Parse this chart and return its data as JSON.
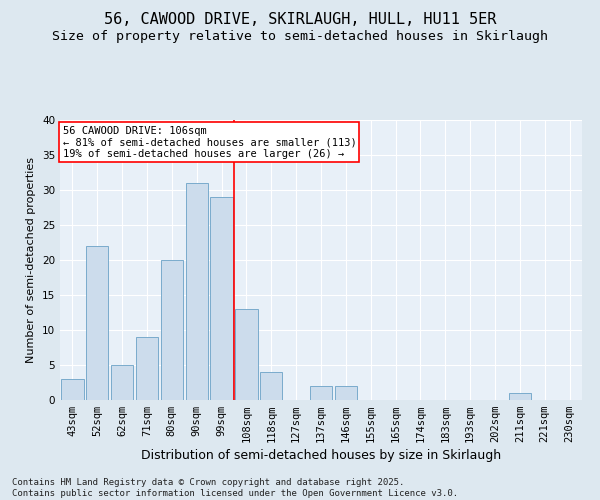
{
  "title": "56, CAWOOD DRIVE, SKIRLAUGH, HULL, HU11 5ER",
  "subtitle": "Size of property relative to semi-detached houses in Skirlaugh",
  "xlabel": "Distribution of semi-detached houses by size in Skirlaugh",
  "ylabel": "Number of semi-detached properties",
  "categories": [
    "43sqm",
    "52sqm",
    "62sqm",
    "71sqm",
    "80sqm",
    "90sqm",
    "99sqm",
    "108sqm",
    "118sqm",
    "127sqm",
    "137sqm",
    "146sqm",
    "155sqm",
    "165sqm",
    "174sqm",
    "183sqm",
    "193sqm",
    "202sqm",
    "211sqm",
    "221sqm",
    "230sqm"
  ],
  "values": [
    3,
    22,
    5,
    9,
    20,
    31,
    29,
    13,
    4,
    0,
    2,
    2,
    0,
    0,
    0,
    0,
    0,
    0,
    1,
    0,
    0
  ],
  "bar_color": "#ccdcec",
  "bar_edge_color": "#7aabcc",
  "vline_index": 7,
  "vline_color": "red",
  "annotation_title": "56 CAWOOD DRIVE: 106sqm",
  "annotation_line1": "← 81% of semi-detached houses are smaller (113)",
  "annotation_line2": "19% of semi-detached houses are larger (26) →",
  "annotation_box_color": "white",
  "annotation_box_edge": "red",
  "ylim": [
    0,
    40
  ],
  "yticks": [
    0,
    5,
    10,
    15,
    20,
    25,
    30,
    35,
    40
  ],
  "background_color": "#dde8f0",
  "plot_bg_color": "#e8f0f8",
  "footer": "Contains HM Land Registry data © Crown copyright and database right 2025.\nContains public sector information licensed under the Open Government Licence v3.0.",
  "title_fontsize": 11,
  "subtitle_fontsize": 9.5,
  "xlabel_fontsize": 9,
  "ylabel_fontsize": 8,
  "tick_fontsize": 7.5,
  "annotation_fontsize": 7.5,
  "footer_fontsize": 6.5
}
